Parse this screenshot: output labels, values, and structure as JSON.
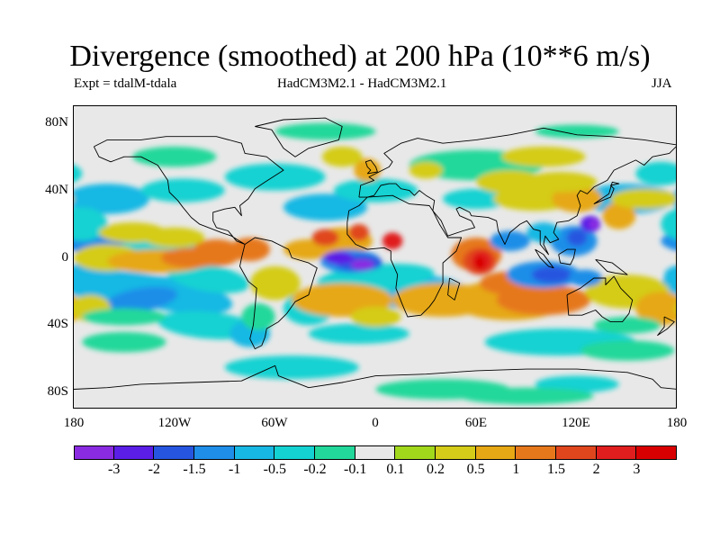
{
  "header": {
    "title": "Divergence (smoothed) at 200 hPa (10**6 m/s)",
    "expt": "Expt = tdalM-tdala",
    "models": "HadCM3M2.1 - HadCM3M2.1",
    "season": "JJA"
  },
  "map": {
    "y_ticks": [
      "80N",
      "40N",
      "0",
      "40S",
      "80S"
    ],
    "x_ticks": [
      "180",
      "120W",
      "60W",
      "0",
      "60E",
      "120E",
      "180"
    ],
    "lon_range": [
      -180,
      180
    ],
    "lat_range": [
      -90,
      90
    ]
  },
  "colorbar": {
    "labels": [
      "-3",
      "-2",
      "-1.5",
      "-1",
      "-0.5",
      "-0.2",
      "-0.1",
      "0.1",
      "0.2",
      "0.5",
      "1",
      "1.5",
      "2",
      "3"
    ],
    "colors": [
      "#8a2be2",
      "#5a1ee6",
      "#2656e0",
      "#1e8ee8",
      "#18b8e4",
      "#14d2d2",
      "#22d89a",
      "#e8e8e8",
      "#a2d81c",
      "#d4cc18",
      "#e6a814",
      "#e6781c",
      "#e0461e",
      "#e01e1e",
      "#d80000"
    ]
  }
}
